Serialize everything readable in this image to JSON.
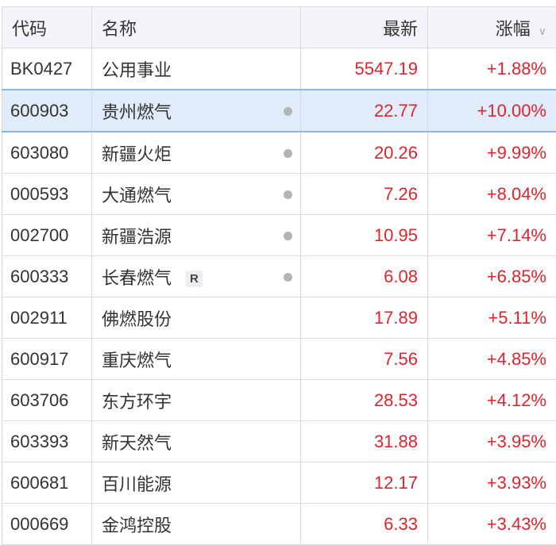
{
  "header": {
    "code": "代码",
    "name": "名称",
    "latest": "最新",
    "change": "涨幅",
    "sort_icon": "chevron-down-icon"
  },
  "colors": {
    "up": "#e0242e",
    "selected_row": "#e1ecfa",
    "header_bg": "#f4f5f9"
  },
  "rows": [
    {
      "code": "BK0427",
      "name": "公用事业",
      "latest": "5547.19",
      "change": "+1.88%",
      "dot": false,
      "badge": ""
    },
    {
      "code": "600903",
      "name": "贵州燃气",
      "latest": "22.77",
      "change": "+10.00%",
      "dot": true,
      "badge": "",
      "selected": true
    },
    {
      "code": "603080",
      "name": "新疆火炬",
      "latest": "20.26",
      "change": "+9.99%",
      "dot": true,
      "badge": ""
    },
    {
      "code": "000593",
      "name": "大通燃气",
      "latest": "7.26",
      "change": "+8.04%",
      "dot": true,
      "badge": ""
    },
    {
      "code": "002700",
      "name": "新疆浩源",
      "latest": "10.95",
      "change": "+7.14%",
      "dot": true,
      "badge": ""
    },
    {
      "code": "600333",
      "name": "长春燃气",
      "latest": "6.08",
      "change": "+6.85%",
      "dot": true,
      "badge": "R"
    },
    {
      "code": "002911",
      "name": "佛燃股份",
      "latest": "17.89",
      "change": "+5.11%",
      "dot": false,
      "badge": ""
    },
    {
      "code": "600917",
      "name": "重庆燃气",
      "latest": "7.56",
      "change": "+4.85%",
      "dot": false,
      "badge": ""
    },
    {
      "code": "603706",
      "name": "东方环宇",
      "latest": "28.53",
      "change": "+4.12%",
      "dot": false,
      "badge": ""
    },
    {
      "code": "603393",
      "name": "新天然气",
      "latest": "31.88",
      "change": "+3.95%",
      "dot": false,
      "badge": ""
    },
    {
      "code": "600681",
      "name": "百川能源",
      "latest": "12.17",
      "change": "+3.93%",
      "dot": false,
      "badge": ""
    },
    {
      "code": "000669",
      "name": "金鸿控股",
      "latest": "6.33",
      "change": "+3.43%",
      "dot": false,
      "badge": ""
    }
  ]
}
